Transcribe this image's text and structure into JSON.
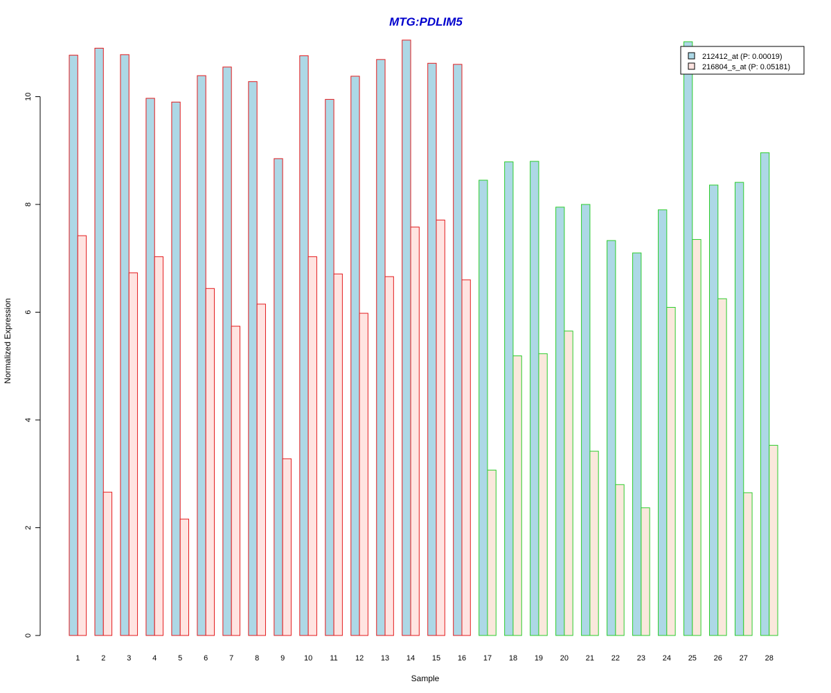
{
  "chart_data": {
    "type": "bar",
    "title": "MTG:PDLIM5",
    "xlabel": "Sample",
    "ylabel": "Normalized Expression",
    "ylim": [
      0,
      11
    ],
    "yticks": [
      0,
      2,
      4,
      6,
      8,
      10
    ],
    "grid": false,
    "legend_position": "top-right",
    "categories": [
      "1",
      "2",
      "3",
      "4",
      "5",
      "6",
      "7",
      "8",
      "9",
      "10",
      "11",
      "12",
      "13",
      "14",
      "15",
      "16",
      "17",
      "18",
      "19",
      "20",
      "21",
      "22",
      "23",
      "24",
      "25",
      "26",
      "27",
      "28"
    ],
    "groups": [
      {
        "samples": [
          "1",
          "2",
          "3",
          "4",
          "5",
          "6",
          "7",
          "8",
          "9",
          "10",
          "11",
          "12",
          "13",
          "14",
          "15",
          "16"
        ],
        "border_color": "#e31a1c"
      },
      {
        "samples": [
          "17",
          "18",
          "19",
          "20",
          "21",
          "22",
          "23",
          "24",
          "25",
          "26",
          "27",
          "28"
        ],
        "border_color": "#2ccc2c"
      }
    ],
    "series": [
      {
        "name": "212412_at (P: 0.00019)",
        "fill": "#add8e6",
        "values": [
          10.77,
          10.9,
          10.78,
          9.97,
          9.9,
          10.39,
          10.55,
          10.28,
          8.85,
          10.76,
          9.95,
          10.38,
          10.69,
          11.05,
          10.62,
          10.6,
          8.45,
          8.79,
          8.8,
          7.95,
          8.0,
          7.33,
          7.1,
          7.9,
          11.02,
          8.36,
          8.41,
          8.96
        ]
      },
      {
        "name": "216804_s_at (P: 0.05181)",
        "fill": "#ffe4e1",
        "fill_group2": "#fae8dc",
        "values": [
          7.42,
          2.66,
          6.73,
          7.03,
          2.16,
          6.44,
          5.74,
          6.15,
          3.28,
          7.03,
          6.71,
          5.98,
          6.66,
          7.58,
          7.71,
          6.6,
          3.07,
          5.19,
          5.23,
          5.65,
          3.42,
          2.8,
          2.37,
          6.09,
          7.35,
          6.25,
          2.65,
          3.53
        ]
      }
    ]
  }
}
